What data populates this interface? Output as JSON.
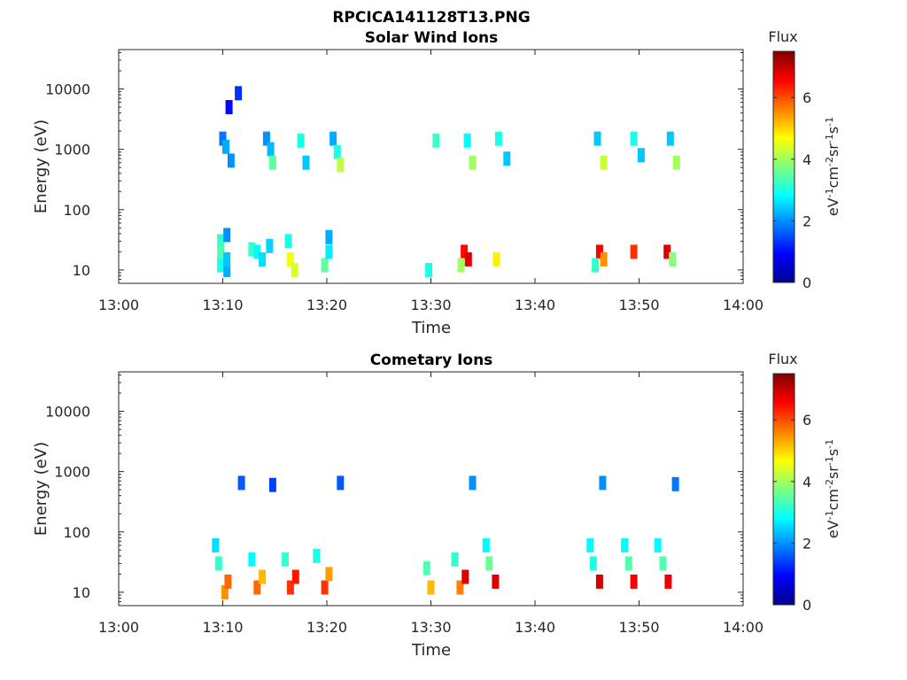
{
  "figure": {
    "file_title": "RPCICA141128T13.PNG",
    "colorbar_title": "Flux",
    "colorbar_unit_html": "eV-1cm-2sr-1s-1",
    "colormap": "jet",
    "colors": {
      "axis": "#262626",
      "background": "#ffffff"
    }
  },
  "chart_data": [
    {
      "type": "heatmap",
      "title": "Solar Wind Ions",
      "xlabel": "Time",
      "ylabel": "Energy (eV)",
      "y_scale": "log",
      "xlim": [
        "13:00",
        "14:00"
      ],
      "ylim": [
        6,
        45000
      ],
      "x_ticks": [
        "13:00",
        "13:10",
        "13:20",
        "13:30",
        "13:40",
        "13:50",
        "14:00"
      ],
      "y_ticks": [
        10,
        100,
        1000,
        10000
      ],
      "y_tick_labels": [
        "10",
        "100",
        "1000",
        "10000"
      ],
      "colorbar": {
        "range": [
          0,
          7.5
        ],
        "ticks": [
          0,
          2,
          4,
          6
        ]
      },
      "grid": false,
      "cells": [
        {
          "t": "13:09.8",
          "e": 30,
          "v": 3.2
        },
        {
          "t": "13:09.8",
          "e": 20,
          "v": 3.4
        },
        {
          "t": "13:09.8",
          "e": 12,
          "v": 3.0
        },
        {
          "t": "13:10.4",
          "e": 10,
          "v": 2.2
        },
        {
          "t": "13:10.4",
          "e": 15,
          "v": 2.4
        },
        {
          "t": "13:10.4",
          "e": 38,
          "v": 2.0
        },
        {
          "t": "13:12.8",
          "e": 22,
          "v": 3.2
        },
        {
          "t": "13:13.3",
          "e": 20,
          "v": 2.8
        },
        {
          "t": "13:13.8",
          "e": 15,
          "v": 2.6
        },
        {
          "t": "13:14.5",
          "e": 25,
          "v": 2.5
        },
        {
          "t": "13:16.5",
          "e": 15,
          "v": 4.6
        },
        {
          "t": "13:16.9",
          "e": 10,
          "v": 4.4
        },
        {
          "t": "13:16.3",
          "e": 30,
          "v": 3.0
        },
        {
          "t": "13:19.8",
          "e": 12,
          "v": 3.5
        },
        {
          "t": "13:20.2",
          "e": 20,
          "v": 2.7
        },
        {
          "t": "13:20.2",
          "e": 35,
          "v": 2.2
        },
        {
          "t": "13:10.0",
          "e": 1500,
          "v": 1.8
        },
        {
          "t": "13:10.3",
          "e": 1100,
          "v": 2.2
        },
        {
          "t": "13:10.8",
          "e": 650,
          "v": 2.0
        },
        {
          "t": "13:11.5",
          "e": 8500,
          "v": 1.3
        },
        {
          "t": "13:10.6",
          "e": 5000,
          "v": 1.0
        },
        {
          "t": "13:14.2",
          "e": 1500,
          "v": 2.0
        },
        {
          "t": "13:14.6",
          "e": 1000,
          "v": 2.3
        },
        {
          "t": "13:14.8",
          "e": 600,
          "v": 3.5
        },
        {
          "t": "13:17.5",
          "e": 1400,
          "v": 3.0
        },
        {
          "t": "13:18.0",
          "e": 600,
          "v": 2.4
        },
        {
          "t": "13:20.6",
          "e": 1500,
          "v": 2.2
        },
        {
          "t": "13:21.0",
          "e": 900,
          "v": 3.0
        },
        {
          "t": "13:21.3",
          "e": 550,
          "v": 4.2
        },
        {
          "t": "13:33.2",
          "e": 20,
          "v": 6.5
        },
        {
          "t": "13:33.6",
          "e": 15,
          "v": 6.8
        },
        {
          "t": "13:32.9",
          "e": 12,
          "v": 4.0
        },
        {
          "t": "13:36.3",
          "e": 15,
          "v": 4.8
        },
        {
          "t": "13:29.8",
          "e": 10,
          "v": 3.0
        },
        {
          "t": "13:30.5",
          "e": 1400,
          "v": 3.2
        },
        {
          "t": "13:33.5",
          "e": 1400,
          "v": 2.8
        },
        {
          "t": "13:34.0",
          "e": 600,
          "v": 4.0
        },
        {
          "t": "13:36.5",
          "e": 1500,
          "v": 3.0
        },
        {
          "t": "13:37.3",
          "e": 700,
          "v": 2.4
        },
        {
          "t": "13:46.2",
          "e": 20,
          "v": 6.6
        },
        {
          "t": "13:46.6",
          "e": 15,
          "v": 5.5
        },
        {
          "t": "13:45.8",
          "e": 12,
          "v": 3.2
        },
        {
          "t": "13:49.5",
          "e": 20,
          "v": 6.2
        },
        {
          "t": "13:52.7",
          "e": 20,
          "v": 6.8
        },
        {
          "t": "13:53.2",
          "e": 15,
          "v": 3.8
        },
        {
          "t": "13:46.0",
          "e": 1500,
          "v": 2.4
        },
        {
          "t": "13:46.6",
          "e": 600,
          "v": 4.3
        },
        {
          "t": "13:49.5",
          "e": 1500,
          "v": 3.0
        },
        {
          "t": "13:50.2",
          "e": 800,
          "v": 2.4
        },
        {
          "t": "13:53.0",
          "e": 1500,
          "v": 2.4
        },
        {
          "t": "13:53.6",
          "e": 600,
          "v": 4.0
        }
      ]
    },
    {
      "type": "heatmap",
      "title": "Cometary Ions",
      "xlabel": "Time",
      "ylabel": "Energy (eV)",
      "y_scale": "log",
      "xlim": [
        "13:00",
        "14:00"
      ],
      "ylim": [
        6,
        45000
      ],
      "x_ticks": [
        "13:00",
        "13:10",
        "13:20",
        "13:30",
        "13:40",
        "13:50",
        "14:00"
      ],
      "y_ticks": [
        10,
        100,
        1000,
        10000
      ],
      "y_tick_labels": [
        "10",
        "100",
        "1000",
        "10000"
      ],
      "colorbar": {
        "range": [
          0,
          7.5
        ],
        "ticks": [
          0,
          2,
          4,
          6
        ]
      },
      "grid": false,
      "cells": [
        {
          "t": "13:10.2",
          "e": 10,
          "v": 5.5
        },
        {
          "t": "13:10.5",
          "e": 15,
          "v": 5.8
        },
        {
          "t": "13:09.6",
          "e": 30,
          "v": 3.2
        },
        {
          "t": "13:09.3",
          "e": 60,
          "v": 2.6
        },
        {
          "t": "13:13.3",
          "e": 12,
          "v": 5.8
        },
        {
          "t": "13:13.8",
          "e": 18,
          "v": 5.2
        },
        {
          "t": "13:12.8",
          "e": 35,
          "v": 2.8
        },
        {
          "t": "13:16.5",
          "e": 12,
          "v": 6.2
        },
        {
          "t": "13:17.0",
          "e": 18,
          "v": 6.4
        },
        {
          "t": "13:16.0",
          "e": 35,
          "v": 3.2
        },
        {
          "t": "13:19.8",
          "e": 12,
          "v": 6.2
        },
        {
          "t": "13:20.2",
          "e": 20,
          "v": 5.4
        },
        {
          "t": "13:19.0",
          "e": 40,
          "v": 3.0
        },
        {
          "t": "13:30.0",
          "e": 12,
          "v": 5.2
        },
        {
          "t": "13:29.6",
          "e": 25,
          "v": 3.4
        },
        {
          "t": "13:32.8",
          "e": 12,
          "v": 5.6
        },
        {
          "t": "13:33.3",
          "e": 18,
          "v": 6.8
        },
        {
          "t": "13:32.3",
          "e": 35,
          "v": 3.2
        },
        {
          "t": "13:36.2",
          "e": 15,
          "v": 6.8
        },
        {
          "t": "13:35.6",
          "e": 30,
          "v": 3.6
        },
        {
          "t": "13:35.3",
          "e": 60,
          "v": 2.8
        },
        {
          "t": "13:46.2",
          "e": 15,
          "v": 6.9
        },
        {
          "t": "13:45.6",
          "e": 30,
          "v": 3.0
        },
        {
          "t": "13:45.3",
          "e": 60,
          "v": 2.8
        },
        {
          "t": "13:49.5",
          "e": 15,
          "v": 6.6
        },
        {
          "t": "13:49.0",
          "e": 30,
          "v": 3.4
        },
        {
          "t": "13:48.6",
          "e": 60,
          "v": 2.8
        },
        {
          "t": "13:52.8",
          "e": 15,
          "v": 6.7
        },
        {
          "t": "13:52.3",
          "e": 30,
          "v": 3.4
        },
        {
          "t": "13:51.8",
          "e": 60,
          "v": 2.8
        },
        {
          "t": "13:11.8",
          "e": 650,
          "v": 1.6
        },
        {
          "t": "13:14.8",
          "e": 600,
          "v": 1.4
        },
        {
          "t": "13:21.3",
          "e": 650,
          "v": 1.6
        },
        {
          "t": "13:34.0",
          "e": 650,
          "v": 2.0
        },
        {
          "t": "13:46.5",
          "e": 650,
          "v": 2.0
        },
        {
          "t": "13:53.5",
          "e": 620,
          "v": 1.8
        }
      ]
    }
  ]
}
